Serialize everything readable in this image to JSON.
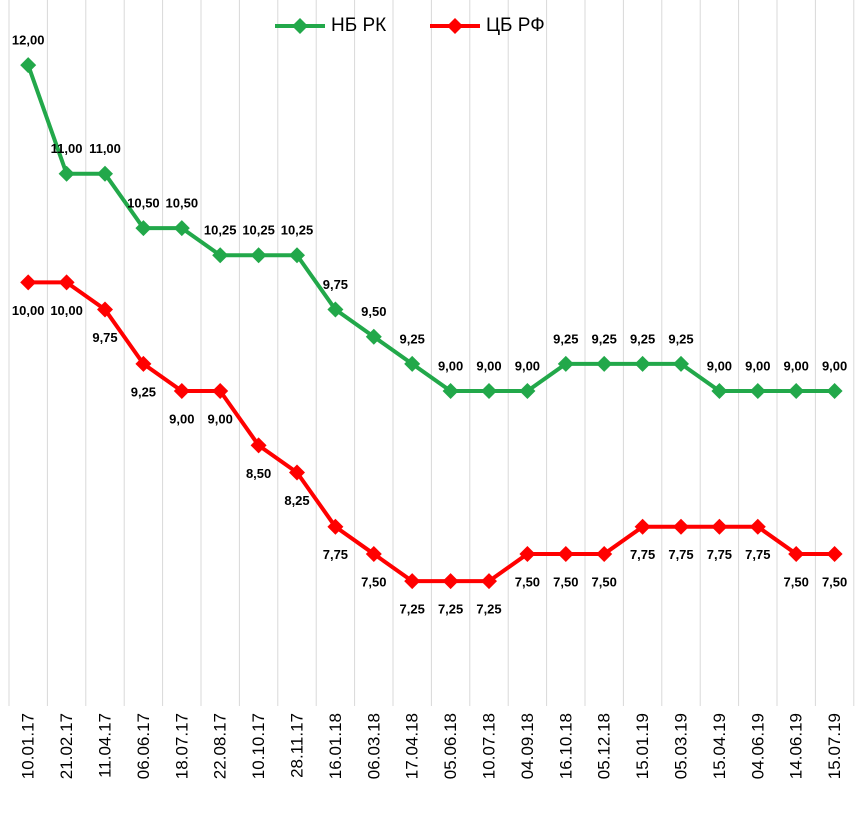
{
  "chart_data": {
    "type": "line",
    "categories": [
      "10.01.17",
      "21.02.17",
      "11.04.17",
      "06.06.17",
      "18.07.17",
      "22.08.17",
      "10.10.17",
      "28.11.17",
      "16.01.18",
      "06.03.18",
      "17.04.18",
      "05.06.18",
      "10.07.18",
      "04.09.18",
      "16.10.18",
      "05.12.18",
      "15.01.19",
      "05.03.19",
      "15.04.19",
      "04.06.19",
      "14.06.19",
      "15.07.19"
    ],
    "series": [
      {
        "name": "НБ РК",
        "color": "#22a84a",
        "values": [
          12,
          11,
          11,
          10.5,
          10.5,
          10.25,
          10.25,
          10.25,
          9.75,
          9.5,
          9.25,
          9,
          9,
          9,
          9.25,
          9.25,
          9.25,
          9.25,
          9,
          9,
          9,
          9
        ],
        "value_labels": [
          "12,00",
          "11,00",
          "11,00",
          "10,50",
          "10,50",
          "10,25",
          "10,25",
          "10,25",
          "9,75",
          "9,50",
          "9,25",
          "9,00",
          "9,00",
          "9,00",
          "9,25",
          "9,25",
          "9,25",
          "9,25",
          "9,00",
          "9,00",
          "9,00",
          "9,00"
        ]
      },
      {
        "name": "ЦБ РФ",
        "color": "#ff0000",
        "values": [
          10,
          10,
          9.75,
          9.25,
          9,
          9,
          8.5,
          8.25,
          7.75,
          7.5,
          7.25,
          7.25,
          7.25,
          7.5,
          7.5,
          7.5,
          7.75,
          7.75,
          7.75,
          7.75,
          7.5,
          7.5
        ],
        "value_labels": [
          "10,00",
          "10,00",
          "9,75",
          "9,25",
          "9,00",
          "9,00",
          "8,50",
          "8,25",
          "7,75",
          "7,50",
          "7,25",
          "7,25",
          "7,25",
          "7,50",
          "7,50",
          "7,50",
          "7,75",
          "7,75",
          "7,75",
          "7,75",
          "7,50",
          "7,50"
        ]
      }
    ],
    "ylim": [
      6.1,
      12.6
    ],
    "grid": true,
    "legend": "top"
  }
}
